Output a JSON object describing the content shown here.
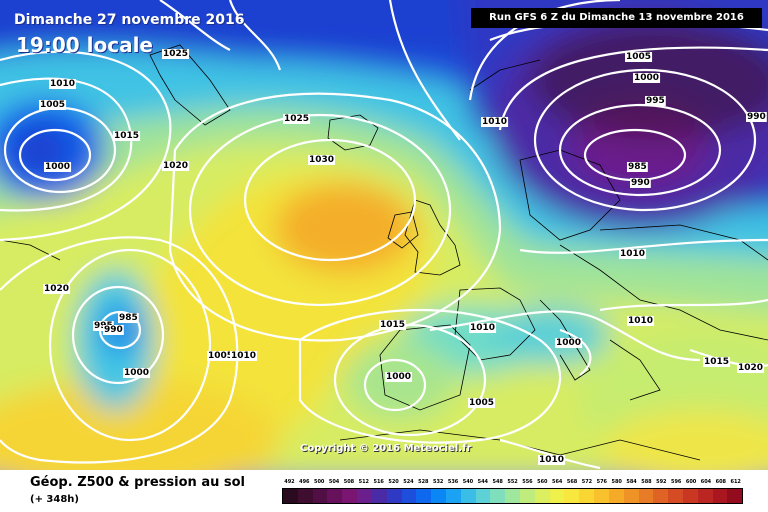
{
  "header": {
    "date_label": "Dimanche 27 novembre 2016",
    "time_label": "19:00 locale",
    "run_label": "Run GFS 6 Z du Dimanche 13 novembre 2016"
  },
  "copyright": "Copyright © 2016 Meteociel.fr",
  "legend": {
    "title": "Géop. Z500 & pression au sol",
    "subtitle": "(+ 348h)",
    "scale_values": [
      "492",
      "496",
      "500",
      "504",
      "508",
      "512",
      "516",
      "520",
      "524",
      "528",
      "532",
      "536",
      "540",
      "544",
      "548",
      "552",
      "556",
      "560",
      "564",
      "568",
      "572",
      "576",
      "580",
      "584",
      "588",
      "592",
      "596",
      "600",
      "604",
      "608",
      "612"
    ],
    "scale_colors": [
      "#2a0a1e",
      "#3e0d30",
      "#520f45",
      "#67115c",
      "#7a1572",
      "#6a1f8c",
      "#4b2aa6",
      "#2f39c3",
      "#1d4fdc",
      "#0e69ef",
      "#0b86f5",
      "#1ca2f2",
      "#3abde6",
      "#5cd2d6",
      "#7fdfbd",
      "#9fe79c",
      "#bfec7c",
      "#dcef60",
      "#eff04a",
      "#f8e73c",
      "#fad632",
      "#f9c22c",
      "#f5ab28",
      "#ef9327",
      "#e87b26",
      "#df6325",
      "#d54c24",
      "#c93723",
      "#bb2522",
      "#a91620",
      "#920c1d"
    ]
  },
  "map": {
    "pressure_labels": [
      "1025",
      "1010",
      "1005",
      "1000",
      "1015",
      "1020",
      "1025",
      "1030",
      "1010",
      "1005",
      "1000",
      "995",
      "990",
      "985",
      "990",
      "1010",
      "1020",
      "995",
      "985",
      "990",
      "1000",
      "1005",
      "1010",
      "1015",
      "1010",
      "1000",
      "1010",
      "1000",
      "1005",
      "1015",
      "1020",
      "1010"
    ]
  }
}
